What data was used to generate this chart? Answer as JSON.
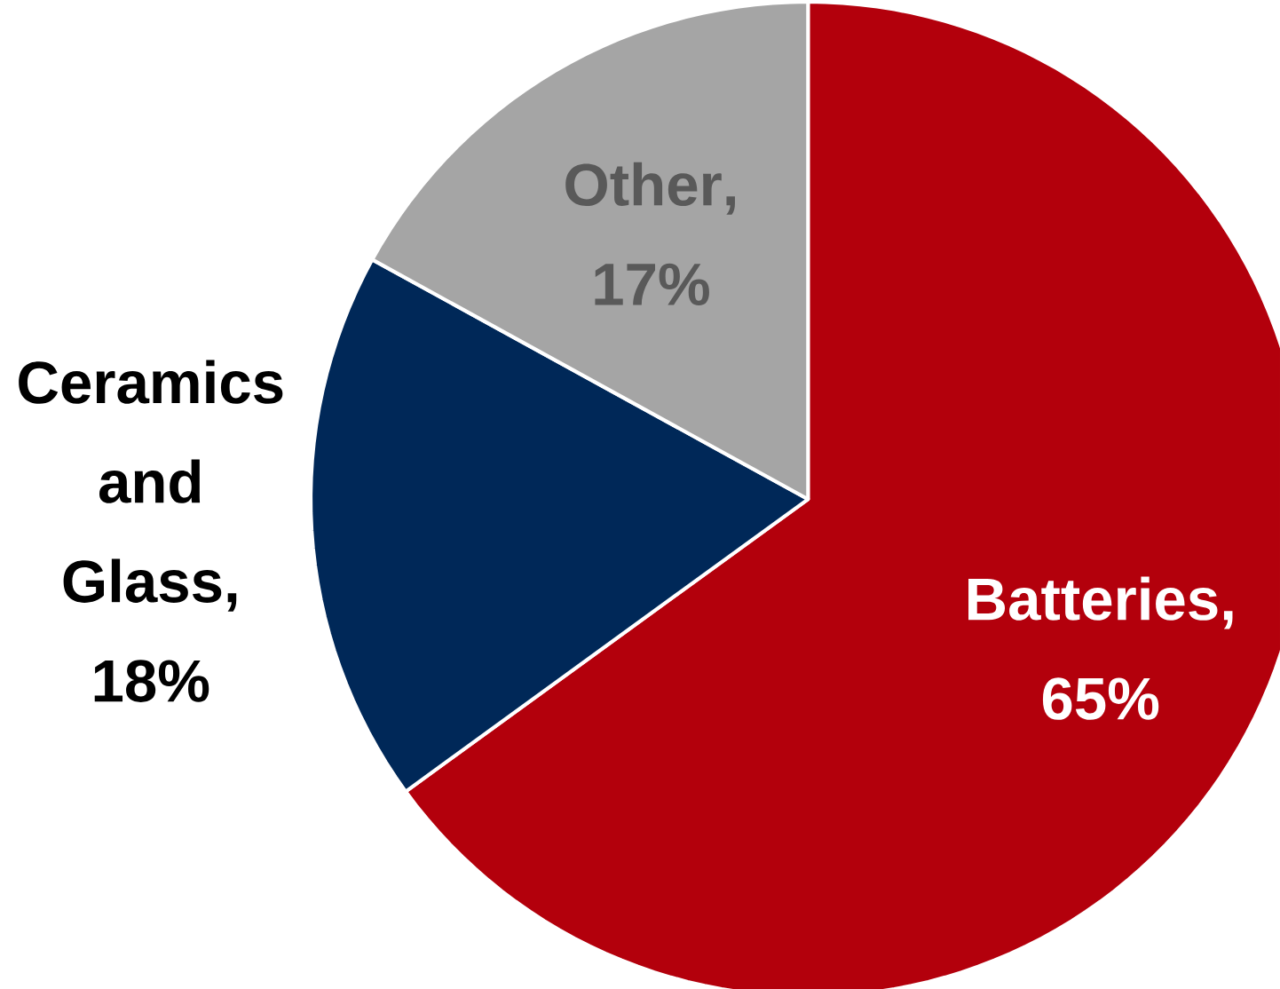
{
  "chart_data": {
    "type": "pie",
    "categories": [
      "Batteries",
      "Ceramics and Glass",
      "Other"
    ],
    "values": [
      65,
      18,
      17
    ],
    "value_labels": [
      ", 65%",
      ", 18%",
      ", 17%"
    ],
    "colors": [
      "#b3000c",
      "#002858",
      "#a5a5a5"
    ]
  }
}
